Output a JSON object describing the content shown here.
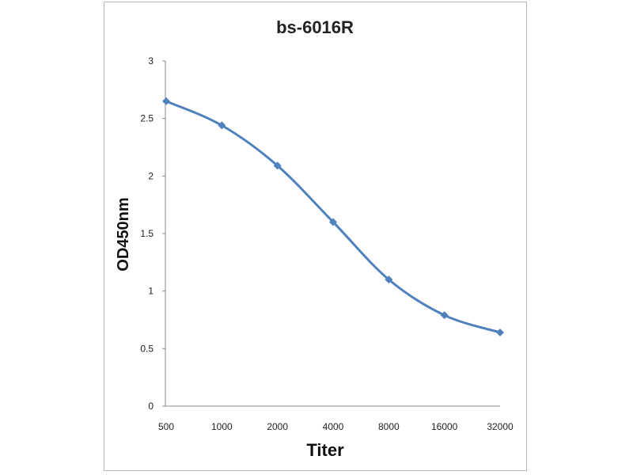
{
  "chart_data": {
    "type": "line",
    "title": "bs-6016R",
    "xlabel": "Titer",
    "ylabel": "OD450nm",
    "categories": [
      "500",
      "1000",
      "2000",
      "4000",
      "8000",
      "16000",
      "32000"
    ],
    "series": [
      {
        "values": [
          2.65,
          2.44,
          2.09,
          1.6,
          1.1,
          0.79,
          0.64
        ]
      }
    ],
    "ylim": [
      0,
      3
    ],
    "yticks": [
      "0",
      "0.5",
      "1",
      "1.5",
      "2",
      "2.5",
      "3"
    ],
    "grid": false,
    "legend": "none",
    "line_color": "#4F81BD",
    "smooth": true,
    "marker": "diamond"
  }
}
